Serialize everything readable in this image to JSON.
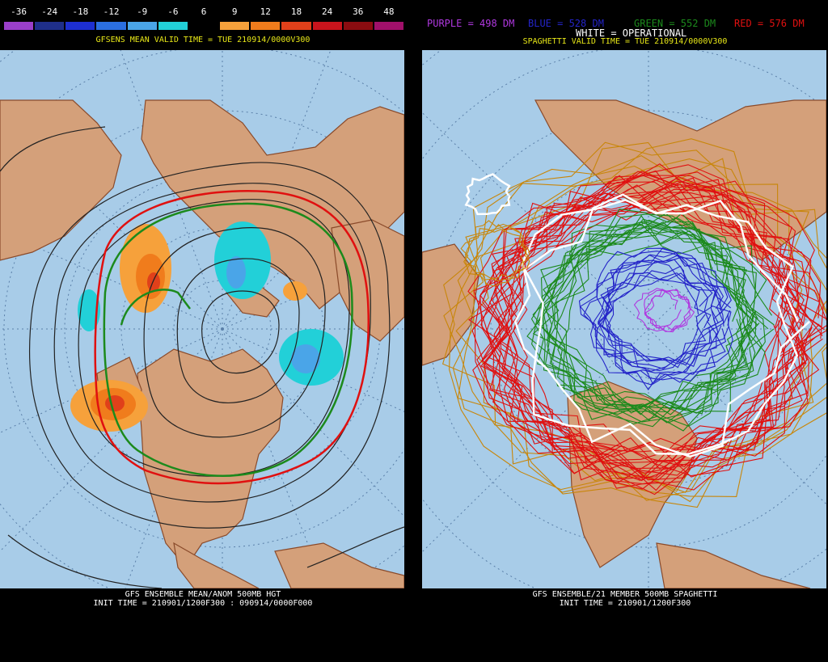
{
  "left": {
    "colorbar": {
      "labels": [
        "-36",
        "-24",
        "-18",
        "-12",
        "-9",
        "-6",
        "6",
        "9",
        "12",
        "18",
        "24",
        "36",
        "48"
      ],
      "colors": [
        "#9a3fc9",
        "#1f2f8a",
        "#1d2fd0",
        "#2b6fe0",
        "#4aa5e8",
        "#22d0d8",
        "#000000",
        "#f6a13b",
        "#f07c1c",
        "#e0401a",
        "#c8141c",
        "#8a0c10",
        "#a0106a"
      ]
    },
    "valid_time": "GFSENS MEAN VALID TIME = TUE 210914/0000V300",
    "footer_line1": "GFS ENSEMBLE MEAN/ANOM 500MB HGT",
    "footer_line2": "INIT TIME = 210901/1200F300 : 090914/0000F000"
  },
  "right": {
    "legend": {
      "purple": "PURPLE = 498 DM",
      "blue": "BLUE = 528 DM",
      "green": "GREEN = 552 DM",
      "red": "RED = 576 DM",
      "white": "WHITE = OPERATIONAL"
    },
    "legend_colors": {
      "purple": "#b038e0",
      "blue": "#2424c8",
      "green": "#1c8a1c",
      "red": "#e01010",
      "white": "#ffffff"
    },
    "valid_time": "SPAGHETTI VALID TIME = TUE 210914/0000V300",
    "footer_line1": "GFS ENSEMBLE/21 MEMBER 500MB SPAGHETTI",
    "footer_line2": "INIT TIME = 210901/1200F300"
  },
  "colors": {
    "ocean": "#a8cce8",
    "land": "#d4a07a",
    "border": "#8a4a2a",
    "grid": "#6a8ab0",
    "title_yellow": "#e8e818"
  }
}
